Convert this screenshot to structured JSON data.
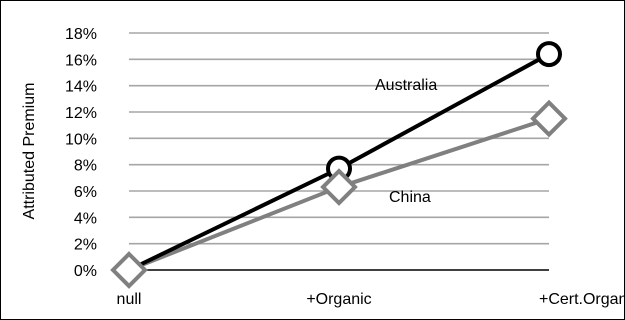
{
  "chart_data": {
    "type": "line",
    "title": "",
    "xlabel": "",
    "ylabel": "Attributed Premium",
    "categories": [
      "null",
      "+Organic",
      "+Cert.Organic"
    ],
    "y_ticks": [
      "0%",
      "2%",
      "4%",
      "6%",
      "8%",
      "10%",
      "12%",
      "14%",
      "16%",
      "18%"
    ],
    "ylim": [
      0,
      18
    ],
    "y_unit": "%",
    "grid": true,
    "legend": "none (direct labels)",
    "series": [
      {
        "name": "Australia",
        "values": [
          0,
          7.7,
          16.4
        ],
        "color": "#000000",
        "marker": "circle"
      },
      {
        "name": "China",
        "values": [
          0,
          6.3,
          11.5
        ],
        "color": "#808080",
        "marker": "diamond"
      }
    ]
  }
}
